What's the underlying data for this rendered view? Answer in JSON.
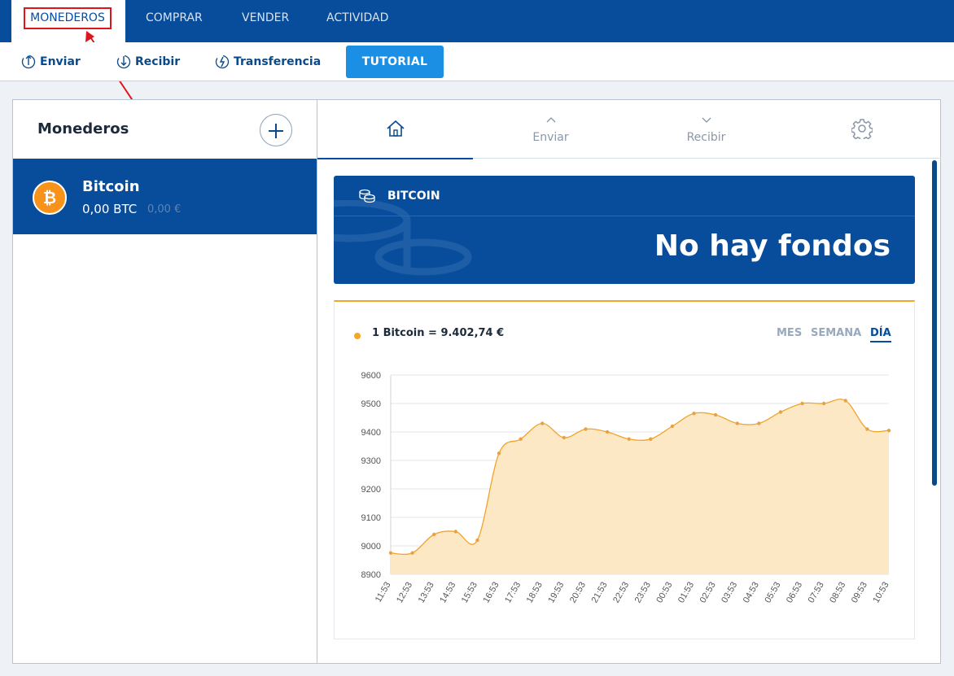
{
  "topnav": {
    "tabs": [
      "MONEDEROS",
      "COMPRAR",
      "VENDER",
      "ACTIVIDAD"
    ]
  },
  "toolbar": {
    "enviar": "Enviar",
    "recibir": "Recibir",
    "transferencia": "Transferencia",
    "tutorial": "TUTORIAL"
  },
  "sidebar": {
    "title": "Monederos",
    "wallet": {
      "name": "Bitcoin",
      "balance_btc": "0,00 BTC",
      "balance_eur": "0,00 €",
      "logo_symbol": "₿"
    }
  },
  "main": {
    "tabs": {
      "enviar": "Enviar",
      "recibir": "Recibir"
    },
    "banner": {
      "label": "BITCOIN",
      "value": "No hay fondos"
    },
    "chart_header": {
      "price": "1 Bitcoin = 9.402,74 €",
      "ranges": [
        "MES",
        "SEMANA",
        "DÍA"
      ],
      "active_range": "DÍA"
    }
  },
  "colors": {
    "brand": "#074d9c",
    "accent": "#f5a623",
    "tutorial": "#1a8fe3",
    "highlight": "#e0141b"
  },
  "chart_data": {
    "type": "area",
    "x": [
      "11:53",
      "12:53",
      "13:53",
      "14:53",
      "15:53",
      "16:53",
      "17:53",
      "18:53",
      "19:53",
      "20:53",
      "21:53",
      "22:53",
      "23:53",
      "00:53",
      "01:53",
      "02:53",
      "03:53",
      "04:53",
      "05:53",
      "06:53",
      "07:53",
      "08:53",
      "09:53",
      "10:53"
    ],
    "series": [
      {
        "values": [
          8975,
          8975,
          9040,
          9050,
          9020,
          9325,
          9375,
          9430,
          9380,
          9410,
          9400,
          9375,
          9375,
          9420,
          9465,
          9460,
          9430,
          9430,
          9470,
          9500,
          9500,
          9510,
          9410,
          9405
        ]
      }
    ],
    "ylim": [
      8900,
      9600
    ],
    "yticks": [
      8900,
      9000,
      9100,
      9200,
      9300,
      9400,
      9500,
      9600
    ],
    "grid": true,
    "legend": "none"
  }
}
